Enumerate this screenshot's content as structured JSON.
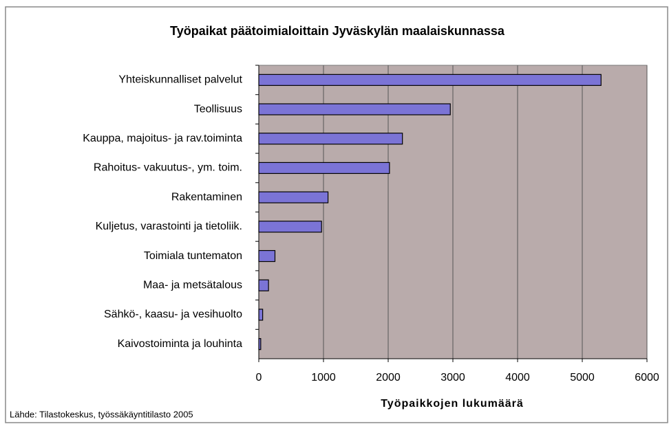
{
  "chart_data": {
    "type": "hbar",
    "title": "Työpaikat päätoimialoittain Jyväskylän maalaiskunnassa",
    "x_label": "Työpaikkojen lukumäärä",
    "source": "Lähde: Tilastokeskus, työssäkäyntitilasto 2005",
    "categories": [
      "Yhteiskunnalliset palvelut",
      "Teollisuus",
      "Kauppa, majoitus- ja rav.toiminta",
      "Rahoitus- vakuutus-, ym. toim.",
      "Rakentaminen",
      "Kuljetus, varastointi ja tietoliik.",
      "Toimiala tuntematon",
      "Maa- ja metsätalous",
      "Sähkö-, kaasu- ja vesihuolto",
      "Kaivostoiminta ja louhinta"
    ],
    "values": [
      5290,
      2960,
      2220,
      2020,
      1070,
      970,
      250,
      150,
      60,
      30
    ],
    "color": "#7b74d6",
    "xlim": [
      0,
      6000
    ],
    "xticks": [
      0,
      1000,
      2000,
      3000,
      4000,
      5000,
      6000
    ],
    "grid": true
  }
}
